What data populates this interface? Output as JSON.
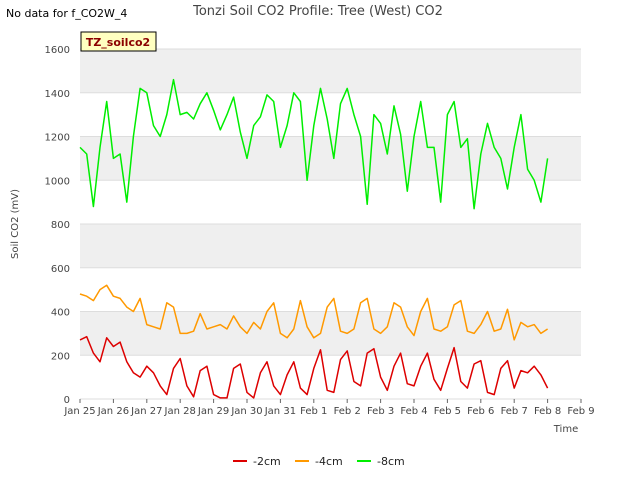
{
  "no_data_note": "No data for f_CO2W_4",
  "badge_label": "TZ_soilco2",
  "chart_data": {
    "type": "line",
    "title": "Tonzi Soil CO2 Profile: Tree (West) CO2",
    "xlabel": "Time",
    "ylabel": "Soil CO2 (mV)",
    "xlim": [
      0,
      15
    ],
    "ylim": [
      0,
      1600
    ],
    "yticks": [
      0,
      200,
      400,
      600,
      800,
      1000,
      1200,
      1400,
      1600
    ],
    "xtick_labels": [
      "Jan 25",
      "Jan 26",
      "Jan 27",
      "Jan 28",
      "Jan 29",
      "Jan 30",
      "Jan 31",
      "Feb 1",
      "Feb 2",
      "Feb 3",
      "Feb 4",
      "Feb 5",
      "Feb 6",
      "Feb 7",
      "Feb 8",
      "Feb 9"
    ],
    "grid": true,
    "legend_position": "bottom",
    "series": [
      {
        "name": "-2cm",
        "color": "#dd0000",
        "x": [
          0,
          0.2,
          0.4,
          0.6,
          0.8,
          1.0,
          1.2,
          1.4,
          1.6,
          1.8,
          2.0,
          2.2,
          2.4,
          2.6,
          2.8,
          3.0,
          3.2,
          3.4,
          3.6,
          3.8,
          4.0,
          4.2,
          4.4,
          4.6,
          4.8,
          5.0,
          5.2,
          5.4,
          5.6,
          5.8,
          6.0,
          6.2,
          6.4,
          6.6,
          6.8,
          7.0,
          7.2,
          7.4,
          7.6,
          7.8,
          8.0,
          8.2,
          8.4,
          8.6,
          8.8,
          9.0,
          9.2,
          9.4,
          9.6,
          9.8,
          10.0,
          10.2,
          10.4,
          10.6,
          10.8,
          11.0,
          11.2,
          11.4,
          11.6,
          11.8,
          12.0,
          12.2,
          12.4,
          12.6,
          12.8,
          13.0,
          13.2,
          13.4,
          13.6,
          13.8,
          14.0
        ],
        "values": [
          270,
          285,
          210,
          170,
          280,
          240,
          260,
          170,
          120,
          100,
          150,
          120,
          60,
          20,
          140,
          185,
          60,
          10,
          130,
          150,
          20,
          5,
          5,
          140,
          160,
          30,
          5,
          120,
          170,
          60,
          20,
          110,
          170,
          50,
          20,
          140,
          225,
          40,
          30,
          180,
          220,
          80,
          60,
          210,
          230,
          100,
          40,
          150,
          210,
          70,
          60,
          150,
          210,
          90,
          40,
          140,
          235,
          80,
          50,
          160,
          175,
          30,
          20,
          140,
          175,
          50,
          130,
          120,
          150,
          110,
          50
        ]
      },
      {
        "name": "-4cm",
        "color": "#ff9900",
        "x": [
          0,
          0.2,
          0.4,
          0.6,
          0.8,
          1.0,
          1.2,
          1.4,
          1.6,
          1.8,
          2.0,
          2.2,
          2.4,
          2.6,
          2.8,
          3.0,
          3.2,
          3.4,
          3.6,
          3.8,
          4.0,
          4.2,
          4.4,
          4.6,
          4.8,
          5.0,
          5.2,
          5.4,
          5.6,
          5.8,
          6.0,
          6.2,
          6.4,
          6.6,
          6.8,
          7.0,
          7.2,
          7.4,
          7.6,
          7.8,
          8.0,
          8.2,
          8.4,
          8.6,
          8.8,
          9.0,
          9.2,
          9.4,
          9.6,
          9.8,
          10.0,
          10.2,
          10.4,
          10.6,
          10.8,
          11.0,
          11.2,
          11.4,
          11.6,
          11.8,
          12.0,
          12.2,
          12.4,
          12.6,
          12.8,
          13.0,
          13.2,
          13.4,
          13.6,
          13.8,
          14.0
        ],
        "values": [
          480,
          470,
          450,
          500,
          520,
          470,
          460,
          420,
          400,
          460,
          340,
          330,
          320,
          440,
          420,
          300,
          300,
          310,
          390,
          320,
          330,
          340,
          320,
          380,
          330,
          300,
          350,
          320,
          400,
          440,
          300,
          280,
          320,
          450,
          330,
          280,
          300,
          420,
          460,
          310,
          300,
          320,
          440,
          460,
          320,
          300,
          330,
          440,
          420,
          330,
          290,
          400,
          460,
          320,
          310,
          330,
          430,
          450,
          310,
          300,
          340,
          400,
          310,
          320,
          410,
          270,
          350,
          330,
          340,
          300,
          320
        ]
      },
      {
        "name": "-8cm",
        "color": "#00ee00",
        "x": [
          0,
          0.2,
          0.4,
          0.6,
          0.8,
          1.0,
          1.2,
          1.4,
          1.6,
          1.8,
          2.0,
          2.2,
          2.4,
          2.6,
          2.8,
          3.0,
          3.2,
          3.4,
          3.6,
          3.8,
          4.0,
          4.2,
          4.4,
          4.6,
          4.8,
          5.0,
          5.2,
          5.4,
          5.6,
          5.8,
          6.0,
          6.2,
          6.4,
          6.6,
          6.8,
          7.0,
          7.2,
          7.4,
          7.6,
          7.8,
          8.0,
          8.2,
          8.4,
          8.6,
          8.8,
          9.0,
          9.2,
          9.4,
          9.6,
          9.8,
          10.0,
          10.2,
          10.4,
          10.6,
          10.8,
          11.0,
          11.2,
          11.4,
          11.6,
          11.8,
          12.0,
          12.2,
          12.4,
          12.6,
          12.8,
          13.0,
          13.2,
          13.4,
          13.6,
          13.8,
          14.0
        ],
        "values": [
          1150,
          1120,
          880,
          1150,
          1360,
          1100,
          1120,
          900,
          1200,
          1420,
          1400,
          1250,
          1200,
          1300,
          1460,
          1300,
          1310,
          1280,
          1350,
          1400,
          1320,
          1230,
          1300,
          1380,
          1220,
          1100,
          1250,
          1290,
          1390,
          1360,
          1150,
          1250,
          1400,
          1360,
          1000,
          1250,
          1420,
          1280,
          1100,
          1350,
          1420,
          1300,
          1200,
          890,
          1300,
          1260,
          1120,
          1340,
          1210,
          950,
          1200,
          1360,
          1150,
          1150,
          900,
          1300,
          1360,
          1150,
          1190,
          870,
          1120,
          1260,
          1150,
          1100,
          960,
          1150,
          1300,
          1050,
          1000,
          900,
          1100
        ]
      }
    ]
  }
}
